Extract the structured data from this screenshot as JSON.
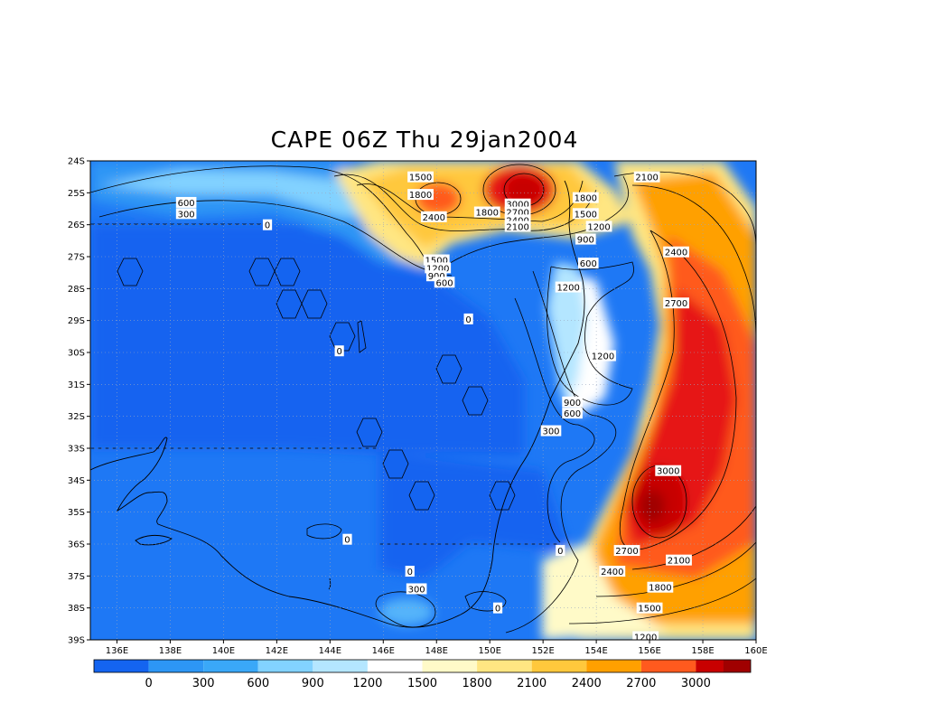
{
  "title": "CAPE 06Z Thu 29jan2004",
  "colors": {
    "levels": [
      "#1464f0",
      "#1e78f5",
      "#2d96f5",
      "#55b4fa",
      "#82d2ff",
      "#b4e6ff",
      "#ffffff",
      "#fffac8",
      "#ffe682",
      "#ffc83c",
      "#ffa000",
      "#ff5a1e",
      "#e61414",
      "#c80000",
      "#a00000"
    ]
  },
  "chart_data": {
    "type": "heatmap",
    "title": "CAPE 06Z Thu 29jan2004",
    "xlim": [
      135,
      160
    ],
    "ylim": [
      -39,
      -24
    ],
    "x_ticks": [
      "136E",
      "138E",
      "140E",
      "142E",
      "144E",
      "146E",
      "148E",
      "150E",
      "152E",
      "154E",
      "156E",
      "158E",
      "160E"
    ],
    "y_ticks": [
      "24S",
      "25S",
      "26S",
      "27S",
      "28S",
      "29S",
      "30S",
      "31S",
      "32S",
      "33S",
      "34S",
      "35S",
      "36S",
      "37S",
      "38S",
      "39S"
    ],
    "colorbar_levels": [
      "0",
      "300",
      "600",
      "900",
      "1200",
      "1500",
      "1800",
      "2100",
      "2400",
      "2700",
      "3000"
    ],
    "grid": true,
    "contour_labels": [
      {
        "text": "1500",
        "lon": 147.4,
        "lat": -24.5
      },
      {
        "text": "1800",
        "lon": 147.4,
        "lat": -25.05
      },
      {
        "text": "600",
        "lon": 138.6,
        "lat": -25.3
      },
      {
        "text": "300",
        "lon": 138.6,
        "lat": -25.65
      },
      {
        "text": "2400",
        "lon": 147.9,
        "lat": -25.75
      },
      {
        "text": "1800",
        "lon": 149.9,
        "lat": -25.6
      },
      {
        "text": "3000",
        "lon": 151.05,
        "lat": -25.35
      },
      {
        "text": "2700",
        "lon": 151.05,
        "lat": -25.6
      },
      {
        "text": "2400",
        "lon": 151.05,
        "lat": -25.85
      },
      {
        "text": "2100",
        "lon": 151.05,
        "lat": -26.05
      },
      {
        "text": "1800",
        "lon": 153.6,
        "lat": -25.15
      },
      {
        "text": "1500",
        "lon": 153.6,
        "lat": -25.65
      },
      {
        "text": "1200",
        "lon": 154.1,
        "lat": -26.05
      },
      {
        "text": "900",
        "lon": 153.6,
        "lat": -26.45
      },
      {
        "text": "2100",
        "lon": 155.9,
        "lat": -24.5
      },
      {
        "text": "0",
        "lon": 141.65,
        "lat": -26.0
      },
      {
        "text": "1500",
        "lon": 148.0,
        "lat": -27.1
      },
      {
        "text": "1200",
        "lon": 148.05,
        "lat": -27.35
      },
      {
        "text": "900",
        "lon": 148.0,
        "lat": -27.6
      },
      {
        "text": "600",
        "lon": 148.3,
        "lat": -27.8
      },
      {
        "text": "600",
        "lon": 153.7,
        "lat": -27.2
      },
      {
        "text": "2400",
        "lon": 157.0,
        "lat": -26.85
      },
      {
        "text": "1200",
        "lon": 152.95,
        "lat": -27.95
      },
      {
        "text": "2700",
        "lon": 157.0,
        "lat": -28.45
      },
      {
        "text": "0",
        "lon": 149.2,
        "lat": -28.95
      },
      {
        "text": "0",
        "lon": 144.35,
        "lat": -29.95
      },
      {
        "text": "1200",
        "lon": 154.25,
        "lat": -30.1
      },
      {
        "text": "900",
        "lon": 153.1,
        "lat": -31.55
      },
      {
        "text": "600",
        "lon": 153.1,
        "lat": -31.9
      },
      {
        "text": "300",
        "lon": 152.3,
        "lat": -32.45
      },
      {
        "text": "3000",
        "lon": 156.7,
        "lat": -33.7
      },
      {
        "text": "0",
        "lon": 144.65,
        "lat": -35.85
      },
      {
        "text": "0",
        "lon": 152.65,
        "lat": -36.2
      },
      {
        "text": "2700",
        "lon": 155.15,
        "lat": -36.2
      },
      {
        "text": "2100",
        "lon": 157.1,
        "lat": -36.5
      },
      {
        "text": "2400",
        "lon": 154.6,
        "lat": -36.85
      },
      {
        "text": "0",
        "lon": 147.0,
        "lat": -36.85
      },
      {
        "text": "1800",
        "lon": 156.4,
        "lat": -37.35
      },
      {
        "text": "300",
        "lon": 147.25,
        "lat": -37.4
      },
      {
        "text": "0",
        "lon": 150.3,
        "lat": -38.0
      },
      {
        "text": "1500",
        "lon": 156.0,
        "lat": -38.0
      },
      {
        "text": "1200",
        "lon": 155.85,
        "lat": -38.9
      }
    ]
  }
}
